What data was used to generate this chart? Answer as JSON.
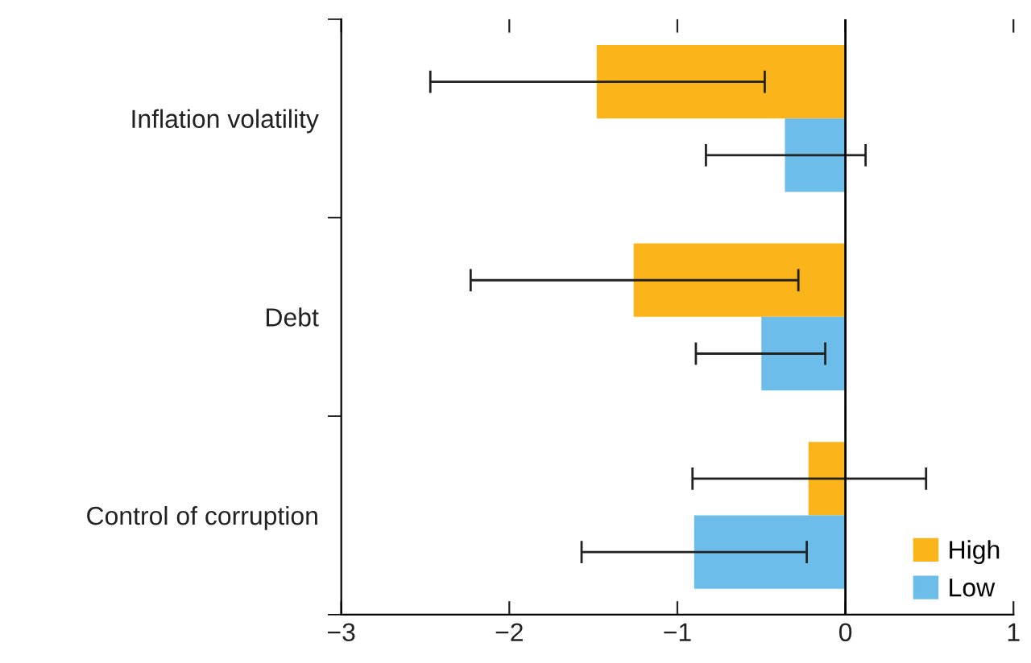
{
  "chart_data": {
    "type": "bar",
    "orientation": "horizontal",
    "categories": [
      "Inflation volatility",
      "Debt",
      "Control of corruption"
    ],
    "series": [
      {
        "name": "High",
        "color": "#fbb41a",
        "values": [
          -1.48,
          -1.26,
          -0.22
        ],
        "errors": [
          [
            -2.47,
            -0.48
          ],
          [
            -2.23,
            -0.28
          ],
          [
            -0.91,
            0.48
          ]
        ]
      },
      {
        "name": "Low",
        "color": "#6cbde9",
        "values": [
          -0.36,
          -0.5,
          -0.9
        ],
        "errors": [
          [
            -0.83,
            0.12
          ],
          [
            -0.89,
            -0.12
          ],
          [
            -1.57,
            -0.23
          ]
        ]
      }
    ],
    "xlim": [
      -3,
      1
    ],
    "xticks": [
      {
        "value": -3,
        "label": "−3"
      },
      {
        "value": -2,
        "label": "−2"
      },
      {
        "value": -1,
        "label": "−1"
      },
      0,
      1
    ],
    "ref_lines": [
      {
        "axis": "x",
        "value": 0,
        "color": "#000000"
      }
    ],
    "grid": false,
    "legend": "bottom right"
  }
}
